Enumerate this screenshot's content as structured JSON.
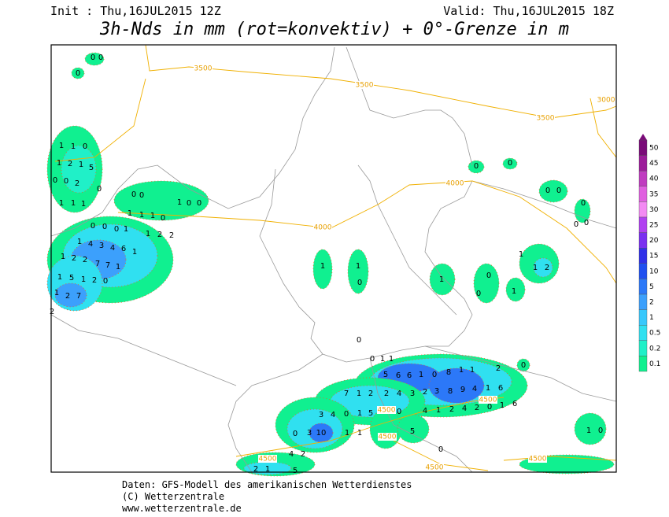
{
  "header": {
    "init": "Init : Thu,16JUL2015 12Z",
    "valid": "Valid: Thu,16JUL2015 18Z",
    "title": "3h-Nds in mm (rot=konvektiv) + 0°-Grenze in m"
  },
  "colorbar": [
    {
      "label": "50",
      "color": "#7a0a78"
    },
    {
      "label": "45",
      "color": "#9c1c9a"
    },
    {
      "label": "40",
      "color": "#c03cc0"
    },
    {
      "label": "35",
      "color": "#e060e0"
    },
    {
      "label": "30",
      "color": "#f38af3"
    },
    {
      "label": "25",
      "color": "#b040f0"
    },
    {
      "label": "20",
      "color": "#7a30f0"
    },
    {
      "label": "15",
      "color": "#3030e8"
    },
    {
      "label": "10",
      "color": "#2050f0"
    },
    {
      "label": "5",
      "color": "#2c78f8"
    },
    {
      "label": "2",
      "color": "#3ca0fc"
    },
    {
      "label": "1",
      "color": "#38c8fc"
    },
    {
      "label": "0.5",
      "color": "#30e0f0"
    },
    {
      "label": "0.2",
      "color": "#20f0c8"
    },
    {
      "label": "0.1",
      "color": "#10f090"
    }
  ],
  "contour_labels": [
    "3500",
    "3500",
    "3000",
    "3500",
    "4000",
    "4000",
    "4500",
    "4500",
    "4500",
    "4500",
    "4500",
    "4500"
  ],
  "map_labels": [
    "0",
    "0",
    "0",
    "1",
    "1",
    "0",
    "1",
    "2",
    "1",
    "5",
    "0",
    "0",
    "2",
    "0",
    "1",
    "1",
    "1",
    "0",
    "0",
    "1",
    "0",
    "0",
    "1",
    "1",
    "1",
    "0",
    "0",
    "0",
    "0",
    "1",
    "1",
    "2",
    "2",
    "1",
    "4",
    "3",
    "4",
    "6",
    "1",
    "1",
    "2",
    "2",
    "7",
    "7",
    "1",
    "1",
    "5",
    "1",
    "2",
    "0",
    "2",
    "7",
    "1",
    "2",
    "1",
    "1",
    "0",
    "1",
    "0",
    "0",
    "1",
    "1",
    "2",
    "1",
    "0",
    "0",
    "0",
    "0",
    "0",
    "0",
    "0",
    "0",
    "0",
    "1",
    "1",
    "5",
    "6",
    "6",
    "1",
    "0",
    "8",
    "1",
    "1",
    "2",
    "0",
    "7",
    "1",
    "2",
    "2",
    "4",
    "3",
    "2",
    "3",
    "8",
    "9",
    "4",
    "1",
    "6",
    "3",
    "4",
    "0",
    "1",
    "5",
    "0",
    "4",
    "1",
    "2",
    "4",
    "2",
    "0",
    "1",
    "6",
    "0",
    "3",
    "10",
    "1",
    "1",
    "5",
    "4",
    "2",
    "1",
    "0",
    "0",
    "2",
    "1",
    "5"
  ],
  "footer": [
    "Daten: GFS-Modell des amerikanischen Wetterdienstes",
    "(C) Wetterzentrale",
    "www.wetterzentrale.de"
  ]
}
